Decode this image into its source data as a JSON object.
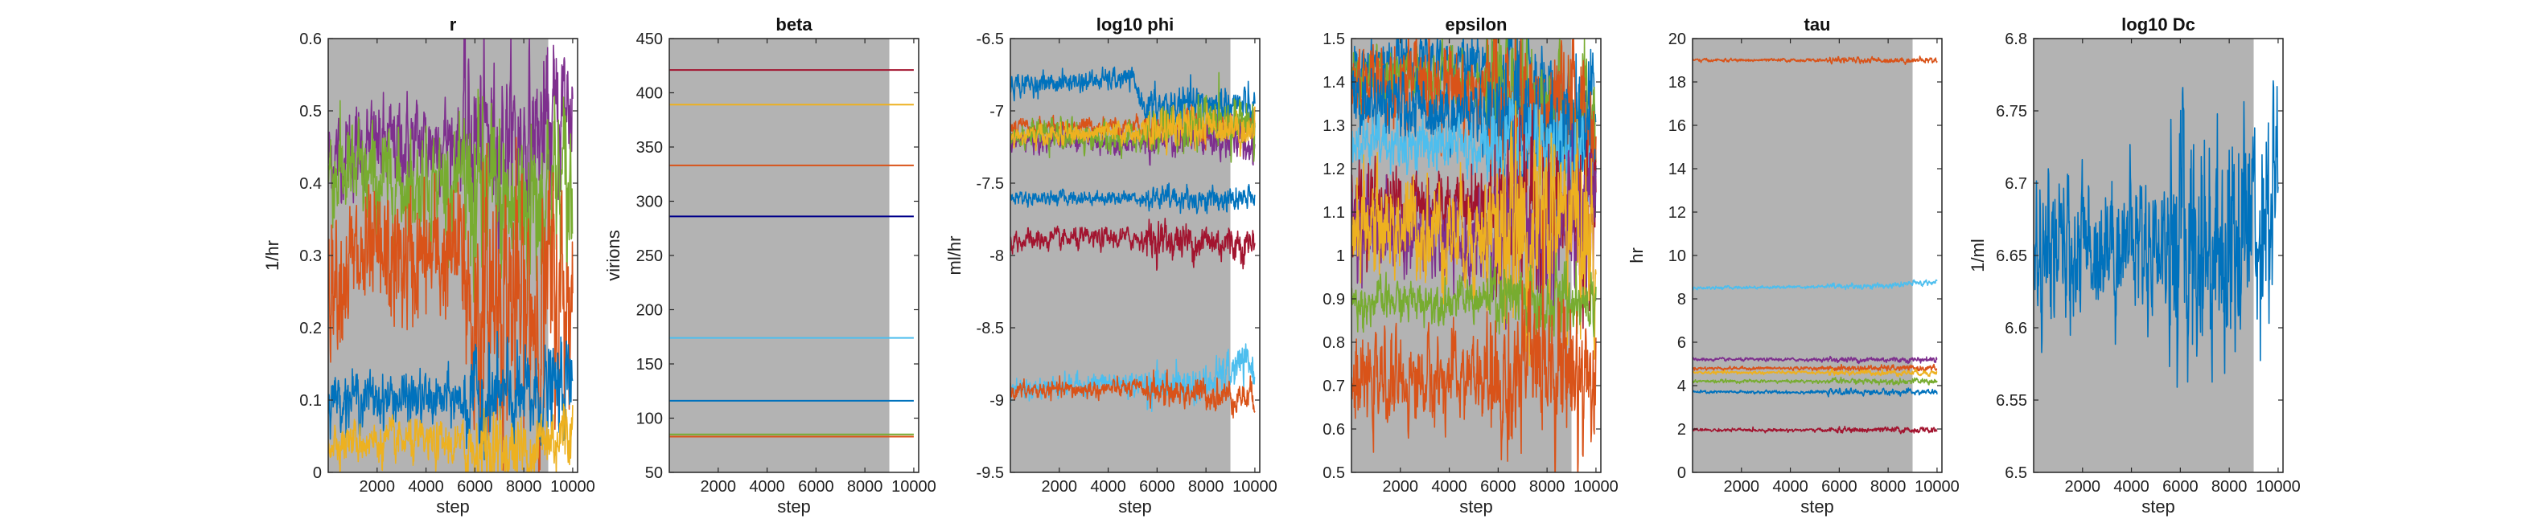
{
  "colors": {
    "burnin_shade": "#b3b3b3",
    "blue": "#0072BD",
    "orange": "#D95319",
    "yellow": "#EDB120",
    "purple": "#7E2F8E",
    "green": "#77AC30",
    "cyan": "#4DBEEE",
    "darkred": "#A2142F",
    "navy": "#00008B"
  },
  "chart_data": [
    {
      "type": "line",
      "title": "r",
      "xlabel": "step",
      "ylabel": "1/hr",
      "xlim": [
        0,
        10200
      ],
      "ylim": [
        0,
        0.6
      ],
      "xticks": [
        2000,
        4000,
        6000,
        8000,
        10000
      ],
      "yticks": [
        0,
        0.1,
        0.2,
        0.3,
        0.4,
        0.5,
        0.6
      ],
      "shaded_region": [
        0,
        9000
      ],
      "series": [
        {
          "color": "#7E2F8E",
          "mean": 0.45,
          "noise": 0.025,
          "profile": [
            [
              0,
              0.435
            ],
            [
              1500,
              0.45
            ],
            [
              5000,
              0.46
            ],
            [
              8000,
              0.46
            ],
            [
              9000,
              0.47
            ],
            [
              10000,
              0.52
            ]
          ]
        },
        {
          "color": "#77AC30",
          "mean": 0.4,
          "noise": 0.03,
          "profile": [
            [
              0,
              0.42
            ],
            [
              2000,
              0.4
            ],
            [
              5000,
              0.4
            ],
            [
              7500,
              0.36
            ],
            [
              9000,
              0.4
            ],
            [
              10000,
              0.38
            ]
          ]
        },
        {
          "color": "#D95319",
          "mean": 0.29,
          "noise": 0.04,
          "profile": [
            [
              0,
              0.28
            ],
            [
              3000,
              0.29
            ],
            [
              5500,
              0.3
            ],
            [
              6000,
              0.2
            ],
            [
              7000,
              0.26
            ],
            [
              8000,
              0.22
            ],
            [
              9000,
              0.24
            ],
            [
              10000,
              0.24
            ]
          ]
        },
        {
          "color": "#0072BD",
          "mean": 0.1,
          "noise": 0.015,
          "profile": [
            [
              0,
              0.105
            ],
            [
              4000,
              0.1
            ],
            [
              8000,
              0.1
            ],
            [
              10000,
              0.12
            ]
          ]
        },
        {
          "color": "#EDB120",
          "mean": 0.04,
          "noise": 0.012,
          "profile": [
            [
              0,
              0.045
            ],
            [
              4000,
              0.04
            ],
            [
              8000,
              0.03
            ],
            [
              10000,
              0.06
            ]
          ]
        }
      ]
    },
    {
      "type": "line",
      "title": "beta",
      "xlabel": "step",
      "ylabel": "virions",
      "xlim": [
        0,
        10200
      ],
      "ylim": [
        50,
        450
      ],
      "xticks": [
        2000,
        4000,
        6000,
        8000,
        10000
      ],
      "yticks": [
        50,
        100,
        150,
        200,
        250,
        300,
        350,
        400,
        450
      ],
      "shaded_region": [
        0,
        9000
      ],
      "series": [
        {
          "color": "#A2142F",
          "mean": 421,
          "noise": 0,
          "profile": [
            [
              0,
              421
            ],
            [
              10000,
              421
            ]
          ]
        },
        {
          "color": "#EDB120",
          "mean": 389,
          "noise": 0,
          "profile": [
            [
              0,
              389
            ],
            [
              10000,
              389
            ]
          ]
        },
        {
          "color": "#D95319",
          "mean": 333,
          "noise": 0,
          "profile": [
            [
              0,
              333
            ],
            [
              10000,
              333
            ]
          ]
        },
        {
          "color": "#00008B",
          "mean": 286,
          "noise": 0,
          "profile": [
            [
              0,
              286
            ],
            [
              10000,
              286
            ]
          ]
        },
        {
          "color": "#4DBEEE",
          "mean": 174,
          "noise": 0,
          "profile": [
            [
              0,
              174
            ],
            [
              10000,
              174
            ]
          ]
        },
        {
          "color": "#0072BD",
          "mean": 116,
          "noise": 0,
          "profile": [
            [
              0,
              116
            ],
            [
              10000,
              116
            ]
          ]
        },
        {
          "color": "#77AC30",
          "mean": 85,
          "noise": 0,
          "profile": [
            [
              0,
              85
            ],
            [
              10000,
              85
            ]
          ]
        },
        {
          "color": "#D95319",
          "mean": 83,
          "noise": 0,
          "profile": [
            [
              0,
              83
            ],
            [
              10000,
              83
            ]
          ]
        }
      ]
    },
    {
      "type": "line",
      "title": "log10 phi",
      "xlabel": "step",
      "ylabel": "ml/hr",
      "xlim": [
        0,
        10200
      ],
      "ylim": [
        -9.5,
        -6.5
      ],
      "xticks": [
        2000,
        4000,
        6000,
        8000,
        10000
      ],
      "yticks": [
        -9.5,
        -9,
        -8.5,
        -8,
        -7.5,
        -7,
        -6.5
      ],
      "shaded_region": [
        0,
        9000
      ],
      "series": [
        {
          "color": "#0072BD",
          "mean": -6.8,
          "noise": 0.03,
          "profile": [
            [
              0,
              -6.82
            ],
            [
              5000,
              -6.78
            ],
            [
              5500,
              -6.98
            ],
            [
              9000,
              -6.95
            ],
            [
              10000,
              -7.0
            ]
          ]
        },
        {
          "color": "#D95319",
          "mean": -7.1,
          "noise": 0.025,
          "profile": [
            [
              0,
              -7.12
            ],
            [
              5000,
              -7.1
            ],
            [
              9000,
              -7.12
            ],
            [
              10000,
              -7.1
            ]
          ]
        },
        {
          "color": "#7E2F8E",
          "mean": -7.2,
          "noise": 0.03,
          "profile": [
            [
              0,
              -7.2
            ],
            [
              5000,
              -7.22
            ],
            [
              9000,
              -7.2
            ],
            [
              10000,
              -7.25
            ]
          ]
        },
        {
          "color": "#77AC30",
          "mean": -7.15,
          "noise": 0.04,
          "profile": [
            [
              0,
              -7.15
            ],
            [
              5000,
              -7.2
            ],
            [
              9000,
              -7.05
            ],
            [
              10000,
              -7.1
            ]
          ]
        },
        {
          "color": "#EDB120",
          "mean": -7.2,
          "noise": 0.03,
          "profile": [
            [
              0,
              -7.18
            ],
            [
              5000,
              -7.15
            ],
            [
              9000,
              -7.1
            ],
            [
              10000,
              -7.15
            ]
          ]
        },
        {
          "color": "#0072BD",
          "mean": -7.6,
          "noise": 0.02,
          "profile": [
            [
              0,
              -7.6
            ],
            [
              5000,
              -7.6
            ],
            [
              10000,
              -7.62
            ]
          ]
        },
        {
          "color": "#A2142F",
          "mean": -7.9,
          "noise": 0.03,
          "profile": [
            [
              0,
              -7.9
            ],
            [
              5000,
              -7.88
            ],
            [
              10000,
              -7.92
            ]
          ]
        },
        {
          "color": "#4DBEEE",
          "mean": -8.9,
          "noise": 0.03,
          "profile": [
            [
              0,
              -8.92
            ],
            [
              4000,
              -8.88
            ],
            [
              8000,
              -8.9
            ],
            [
              9500,
              -8.75
            ],
            [
              10000,
              -8.78
            ]
          ]
        },
        {
          "color": "#D95319",
          "mean": -8.95,
          "noise": 0.025,
          "profile": [
            [
              0,
              -8.94
            ],
            [
              5000,
              -8.92
            ],
            [
              9000,
              -8.97
            ],
            [
              10000,
              -8.98
            ]
          ]
        }
      ]
    },
    {
      "type": "line",
      "title": "epsilon",
      "xlabel": "step",
      "ylabel": "",
      "xlim": [
        0,
        10200
      ],
      "ylim": [
        0.5,
        1.5
      ],
      "xticks": [
        2000,
        4000,
        6000,
        8000,
        10000
      ],
      "yticks": [
        0.5,
        0.6,
        0.7,
        0.8,
        0.9,
        1,
        1.1,
        1.2,
        1.3,
        1.4,
        1.5
      ],
      "shaded_region": [
        0,
        9000
      ],
      "series": [
        {
          "color": "#0072BD",
          "mean": 1.44,
          "noise": 0.025,
          "profile": [
            [
              0,
              1.44
            ],
            [
              5000,
              1.45
            ],
            [
              7000,
              1.4
            ],
            [
              9000,
              1.35
            ],
            [
              10000,
              1.35
            ]
          ]
        },
        {
          "color": "#77AC30",
          "mean": 1.4,
          "noise": 0.03,
          "profile": [
            [
              0,
              1.4
            ],
            [
              5000,
              1.41
            ],
            [
              7000,
              1.35
            ],
            [
              10000,
              1.3
            ]
          ]
        },
        {
          "color": "#D95319",
          "mean": 1.38,
          "noise": 0.04,
          "profile": [
            [
              0,
              1.38
            ],
            [
              4000,
              1.4
            ],
            [
              7000,
              1.32
            ],
            [
              10000,
              1.3
            ]
          ]
        },
        {
          "color": "#0072BD",
          "mean": 1.35,
          "noise": 0.03,
          "profile": [
            [
              0,
              1.35
            ],
            [
              5000,
              1.33
            ],
            [
              8000,
              1.3
            ],
            [
              10000,
              1.25
            ]
          ]
        },
        {
          "color": "#4DBEEE",
          "mean": 1.26,
          "noise": 0.025,
          "profile": [
            [
              0,
              1.26
            ],
            [
              5000,
              1.25
            ],
            [
              8000,
              1.22
            ],
            [
              10000,
              1.2
            ]
          ]
        },
        {
          "color": "#A2142F",
          "mean": 1.12,
          "noise": 0.04,
          "profile": [
            [
              0,
              1.12
            ],
            [
              5000,
              1.12
            ],
            [
              8000,
              1.1
            ],
            [
              10000,
              1.1
            ]
          ]
        },
        {
          "color": "#7E2F8E",
          "mean": 1.05,
          "noise": 0.04,
          "profile": [
            [
              0,
              1.07
            ],
            [
              5000,
              1.02
            ],
            [
              8000,
              1.05
            ],
            [
              10000,
              1.05
            ]
          ]
        },
        {
          "color": "#EDB120",
          "mean": 1.08,
          "noise": 0.05,
          "profile": [
            [
              0,
              1.08
            ],
            [
              5000,
              1.05
            ],
            [
              7000,
              1.05
            ],
            [
              9000,
              1.1
            ],
            [
              10000,
              1.0
            ]
          ]
        },
        {
          "color": "#77AC30",
          "mean": 0.89,
          "noise": 0.02,
          "profile": [
            [
              0,
              0.89
            ],
            [
              5000,
              0.9
            ],
            [
              8000,
              0.88
            ],
            [
              10000,
              0.92
            ]
          ]
        },
        {
          "color": "#D95319",
          "mean": 0.7,
          "noise": 0.04,
          "profile": [
            [
              0,
              0.7
            ],
            [
              5000,
              0.72
            ],
            [
              6000,
              0.68
            ],
            [
              8000,
              0.78
            ],
            [
              10000,
              0.7
            ]
          ]
        }
      ]
    },
    {
      "type": "line",
      "title": "tau",
      "xlabel": "step",
      "ylabel": "hr",
      "xlim": [
        0,
        10200
      ],
      "ylim": [
        0,
        20
      ],
      "xticks": [
        2000,
        4000,
        6000,
        8000,
        10000
      ],
      "yticks": [
        0,
        2,
        4,
        6,
        8,
        10,
        12,
        14,
        16,
        18,
        20
      ],
      "shaded_region": [
        0,
        9000
      ],
      "series": [
        {
          "color": "#D95319",
          "mean": 19.0,
          "noise": 0.03,
          "profile": [
            [
              0,
              19.0
            ],
            [
              10000,
              19.0
            ]
          ]
        },
        {
          "color": "#4DBEEE",
          "mean": 8.5,
          "noise": 0.03,
          "profile": [
            [
              0,
              8.5
            ],
            [
              8000,
              8.6
            ],
            [
              10000,
              8.8
            ]
          ]
        },
        {
          "color": "#7E2F8E",
          "mean": 5.2,
          "noise": 0.03,
          "profile": [
            [
              0,
              5.2
            ],
            [
              10000,
              5.2
            ]
          ]
        },
        {
          "color": "#D95319",
          "mean": 4.8,
          "noise": 0.03,
          "profile": [
            [
              0,
              4.8
            ],
            [
              10000,
              4.8
            ]
          ]
        },
        {
          "color": "#EDB120",
          "mean": 4.6,
          "noise": 0.03,
          "profile": [
            [
              0,
              4.6
            ],
            [
              10000,
              4.6
            ]
          ]
        },
        {
          "color": "#77AC30",
          "mean": 4.2,
          "noise": 0.03,
          "profile": [
            [
              0,
              4.2
            ],
            [
              10000,
              4.2
            ]
          ]
        },
        {
          "color": "#0072BD",
          "mean": 3.7,
          "noise": 0.03,
          "profile": [
            [
              0,
              3.7
            ],
            [
              10000,
              3.7
            ]
          ]
        },
        {
          "color": "#A2142F",
          "mean": 1.95,
          "noise": 0.03,
          "profile": [
            [
              0,
              1.95
            ],
            [
              10000,
              1.95
            ]
          ]
        }
      ]
    },
    {
      "type": "line",
      "title": "log10 Dc",
      "xlabel": "step",
      "ylabel": "1/ml",
      "xlim": [
        0,
        10200
      ],
      "ylim": [
        6.5,
        6.8
      ],
      "xticks": [
        2000,
        4000,
        6000,
        8000,
        10000
      ],
      "yticks": [
        6.5,
        6.55,
        6.6,
        6.65,
        6.7,
        6.75,
        6.8
      ],
      "shaded_region": [
        0,
        9000
      ],
      "series": [
        {
          "color": "#0072BD",
          "mean": 6.66,
          "noise": 0.02,
          "profile": [
            [
              0,
              6.645
            ],
            [
              1000,
              6.65
            ],
            [
              3000,
              6.66
            ],
            [
              6000,
              6.66
            ],
            [
              8000,
              6.66
            ],
            [
              9000,
              6.68
            ],
            [
              10000,
              6.7
            ]
          ]
        }
      ]
    }
  ]
}
